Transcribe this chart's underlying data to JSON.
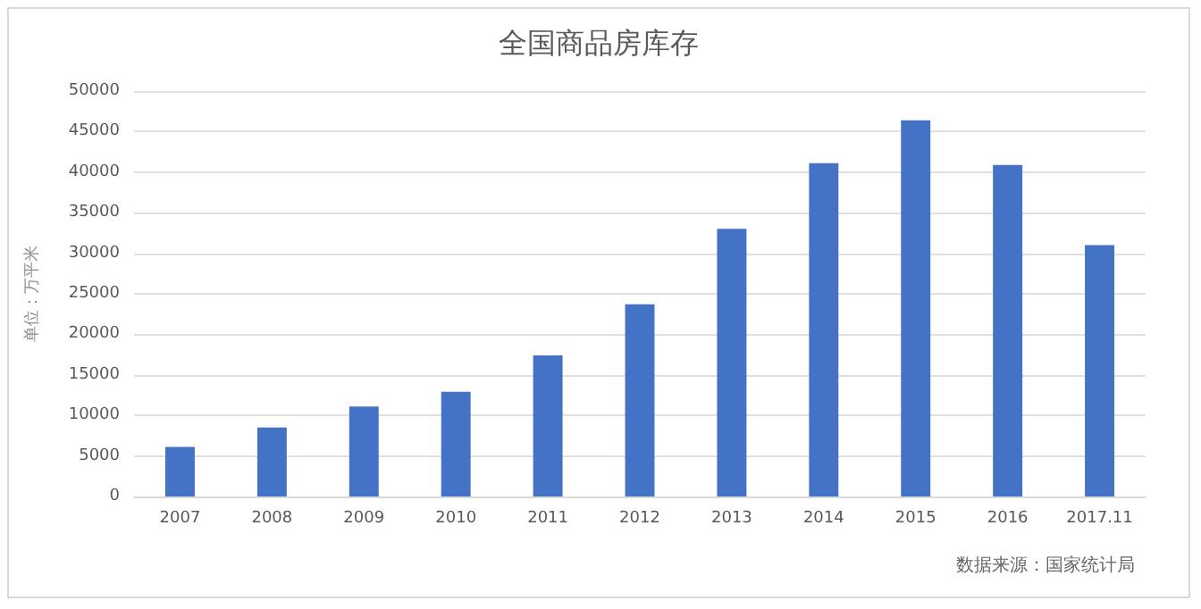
{
  "chart_data": {
    "type": "bar",
    "title": "全国商品房库存",
    "ylabel": "单位：万平米",
    "categories": [
      "2007",
      "2008",
      "2009",
      "2010",
      "2011",
      "2012",
      "2013",
      "2014",
      "2015",
      "2016",
      "2017.11"
    ],
    "values": [
      6100,
      8500,
      11100,
      12900,
      17400,
      23700,
      33000,
      41100,
      46400,
      40900,
      31000
    ],
    "color": "#4472c4",
    "ylim": [
      0,
      50000
    ],
    "yticks": [
      0,
      5000,
      10000,
      15000,
      20000,
      25000,
      30000,
      35000,
      40000,
      45000,
      50000
    ],
    "grid": "y",
    "annotations": [
      "数据来源：国家统计局"
    ]
  }
}
